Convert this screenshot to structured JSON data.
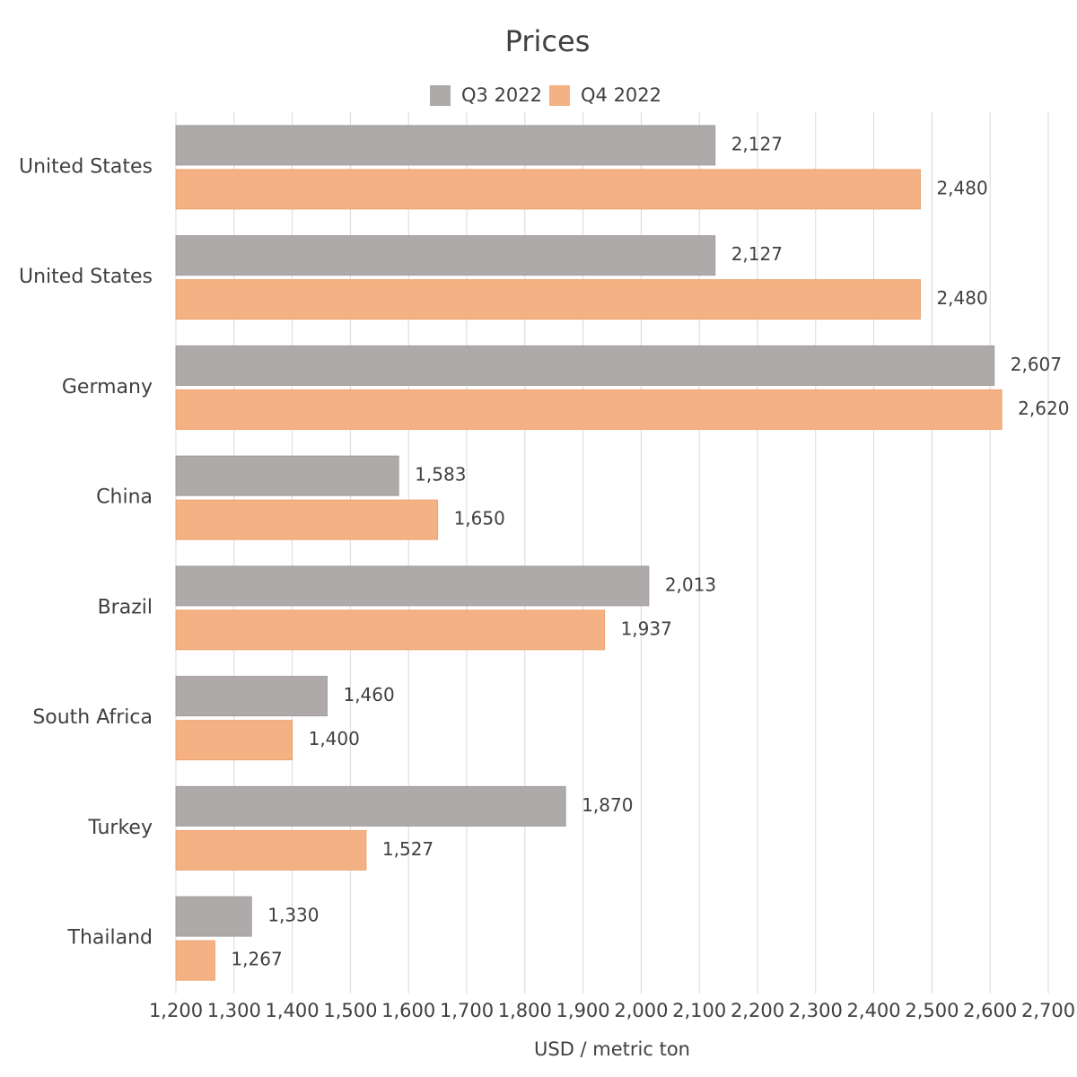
{
  "chart_data": {
    "type": "bar",
    "orientation": "horizontal",
    "title": "Prices",
    "x_label": "USD / metric ton",
    "categories": [
      "United States",
      "United States",
      "Germany",
      "China",
      "Brazil",
      "South Africa",
      "Turkey",
      "Thailand"
    ],
    "series": [
      {
        "name": "Q3 2022",
        "color": "#aeaaaa",
        "values": [
          2127,
          2127,
          2607,
          1583,
          2013,
          1460,
          1870,
          1330
        ],
        "value_labels": [
          "2,127",
          "2,127",
          "2,607",
          "1,583",
          "2,013",
          "1,460",
          "1,870",
          "1,330"
        ]
      },
      {
        "name": "Q4 2022",
        "color": "#f4b183",
        "values": [
          2480,
          2480,
          2620,
          1650,
          1937,
          1400,
          1527,
          1267
        ],
        "value_labels": [
          "2,480",
          "2,480",
          "2,620",
          "1,650",
          "1,937",
          "1,400",
          "1,527",
          "1,267"
        ]
      }
    ],
    "xlim": [
      1200,
      2700
    ],
    "xticks": [
      {
        "value": 1200,
        "label": "1,200"
      },
      {
        "value": 1300,
        "label": "1,300"
      },
      {
        "value": 1400,
        "label": "1,400"
      },
      {
        "value": 1500,
        "label": "1,500"
      },
      {
        "value": 1600,
        "label": "1,600"
      },
      {
        "value": 1700,
        "label": "1,700"
      },
      {
        "value": 1800,
        "label": "1,800"
      },
      {
        "value": 1900,
        "label": "1,900"
      },
      {
        "value": 2000,
        "label": "2,000"
      },
      {
        "value": 2100,
        "label": "2,100"
      },
      {
        "value": 2200,
        "label": "2,200"
      },
      {
        "value": 2300,
        "label": "2,300"
      },
      {
        "value": 2400,
        "label": "2,400"
      },
      {
        "value": 2500,
        "label": "2,500"
      },
      {
        "value": 2600,
        "label": "2,600"
      },
      {
        "value": 2700,
        "label": "2,700"
      }
    ],
    "grid": true,
    "legend": "top"
  }
}
